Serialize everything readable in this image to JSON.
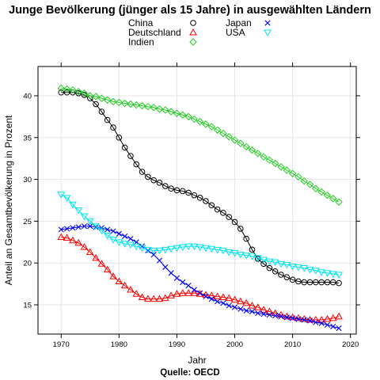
{
  "chart_data": {
    "type": "line",
    "title": "Junge Bevölkerung (jünger als 15 Jahre) in ausgewählten Ländern",
    "xlabel": "Jahr",
    "ylabel": "Anteil an Gesamtbevölkerung in Prozent",
    "caption": "Quelle: OECD",
    "xlim": [
      1966,
      2021
    ],
    "ylim": [
      11.5,
      43.5
    ],
    "x_ticks": [
      1970,
      1980,
      1990,
      2000,
      2010,
      2020
    ],
    "y_ticks": [
      15,
      20,
      25,
      30,
      35,
      40
    ],
    "grid": true,
    "legend_position": "top",
    "x": [
      1970,
      1971,
      1972,
      1973,
      1974,
      1975,
      1976,
      1977,
      1978,
      1979,
      1980,
      1981,
      1982,
      1983,
      1984,
      1985,
      1986,
      1987,
      1988,
      1989,
      1990,
      1991,
      1992,
      1993,
      1994,
      1995,
      1996,
      1997,
      1998,
      1999,
      2000,
      2001,
      2002,
      2003,
      2004,
      2005,
      2006,
      2007,
      2008,
      2009,
      2010,
      2011,
      2012,
      2013,
      2014,
      2015,
      2016,
      2017,
      2018
    ],
    "series": [
      {
        "name": "China",
        "color": "#000000",
        "marker": "circle",
        "values": [
          40.4,
          40.4,
          40.4,
          40.3,
          40.1,
          39.7,
          39.0,
          38.1,
          37.1,
          36.2,
          35.0,
          33.8,
          32.8,
          31.8,
          30.9,
          30.3,
          29.9,
          29.6,
          29.2,
          28.9,
          28.7,
          28.6,
          28.4,
          28.1,
          27.8,
          27.4,
          26.9,
          26.4,
          26.0,
          25.5,
          24.9,
          24.1,
          22.9,
          21.6,
          20.5,
          19.9,
          19.4,
          19.0,
          18.6,
          18.3,
          18.0,
          17.8,
          17.7,
          17.7,
          17.7,
          17.7,
          17.7,
          17.7,
          17.6
        ]
      },
      {
        "name": "Deutschland",
        "color": "#ff0000",
        "marker": "triangle-up",
        "values": [
          23.1,
          23.0,
          22.7,
          22.4,
          21.9,
          21.3,
          20.6,
          19.9,
          19.2,
          18.4,
          17.8,
          17.3,
          16.8,
          16.3,
          15.9,
          15.7,
          15.7,
          15.7,
          15.8,
          16.1,
          16.3,
          16.4,
          16.4,
          16.4,
          16.3,
          16.2,
          16.1,
          16.0,
          15.9,
          15.8,
          15.6,
          15.4,
          15.2,
          14.9,
          14.7,
          14.4,
          14.2,
          14.0,
          13.8,
          13.6,
          13.5,
          13.4,
          13.3,
          13.2,
          13.2,
          13.2,
          13.3,
          13.4,
          13.6
        ]
      },
      {
        "name": "Indien",
        "color": "#22cc22",
        "marker": "diamond",
        "values": [
          40.9,
          40.8,
          40.7,
          40.5,
          40.3,
          40.0,
          39.9,
          39.7,
          39.5,
          39.3,
          39.2,
          39.1,
          39.0,
          38.9,
          38.8,
          38.7,
          38.6,
          38.4,
          38.3,
          38.1,
          37.9,
          37.7,
          37.5,
          37.2,
          36.9,
          36.6,
          36.3,
          35.9,
          35.5,
          35.1,
          34.7,
          34.3,
          33.9,
          33.5,
          33.1,
          32.7,
          32.3,
          31.9,
          31.5,
          31.1,
          30.7,
          30.3,
          29.8,
          29.4,
          28.9,
          28.5,
          28.1,
          27.7,
          27.3
        ]
      },
      {
        "name": "Japan",
        "color": "#0000ff",
        "marker": "x",
        "values": [
          24.0,
          24.1,
          24.2,
          24.3,
          24.4,
          24.4,
          24.3,
          24.2,
          24.0,
          23.8,
          23.5,
          23.2,
          22.9,
          22.5,
          22.0,
          21.5,
          21.0,
          20.3,
          19.5,
          18.8,
          18.2,
          17.7,
          17.3,
          16.8,
          16.4,
          16.0,
          15.7,
          15.4,
          15.2,
          14.9,
          14.7,
          14.5,
          14.3,
          14.2,
          14.0,
          13.9,
          13.8,
          13.7,
          13.6,
          13.5,
          13.4,
          13.3,
          13.2,
          13.1,
          12.9,
          12.8,
          12.6,
          12.4,
          12.2
        ]
      },
      {
        "name": "USA",
        "color": "#00e5ee",
        "marker": "triangle-down",
        "values": [
          28.2,
          27.8,
          27.0,
          26.3,
          25.6,
          25.0,
          24.4,
          23.9,
          23.3,
          22.8,
          22.5,
          22.3,
          22.2,
          22.0,
          21.8,
          21.6,
          21.5,
          21.5,
          21.6,
          21.7,
          21.8,
          21.9,
          22.0,
          22.0,
          21.9,
          21.8,
          21.7,
          21.6,
          21.5,
          21.3,
          21.2,
          21.0,
          20.9,
          20.8,
          20.6,
          20.4,
          20.2,
          20.1,
          19.9,
          19.8,
          19.6,
          19.5,
          19.4,
          19.2,
          19.1,
          18.9,
          18.8,
          18.7,
          18.6
        ]
      }
    ]
  }
}
